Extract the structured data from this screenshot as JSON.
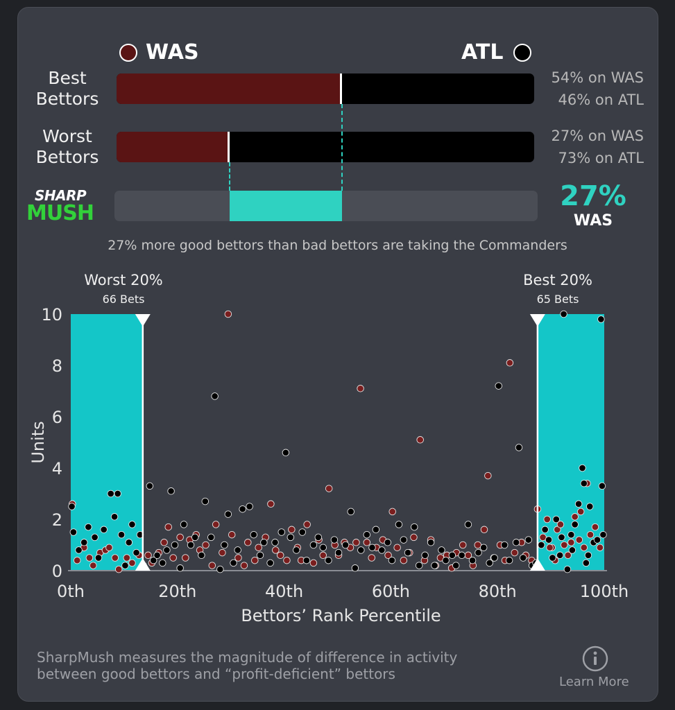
{
  "teams": {
    "left": {
      "abbr": "WAS",
      "color": "#5a1414"
    },
    "right": {
      "abbr": "ATL",
      "color": "#000000"
    }
  },
  "best_bettors": {
    "label_line1": "Best",
    "label_line2": "Bettors",
    "was_pct": 54,
    "atl_pct": 46,
    "was_text": "54% on WAS",
    "atl_text": "46% on ATL"
  },
  "worst_bettors": {
    "label_line1": "Worst",
    "label_line2": "Bettors",
    "was_pct": 27,
    "atl_pct": 73,
    "was_text": "27% on WAS",
    "atl_text": "73% on ATL"
  },
  "sharpmush": {
    "logo_top": "SHARP",
    "logo_bottom": "MUSH",
    "value_text": "27%",
    "team": "WAS",
    "from_pct": 27,
    "to_pct": 54,
    "accent": "#2fd2c1"
  },
  "summary": "27% more good bettors than bad bettors are taking the Commanders",
  "chart_data": {
    "type": "scatter",
    "xlabel": "Bettors’ Rank Percentile",
    "ylabel": "Units",
    "xlim": [
      0,
      100
    ],
    "ylim": [
      0,
      10
    ],
    "x_ticks": [
      0,
      20,
      40,
      60,
      80,
      100
    ],
    "x_tick_labels": [
      "0th",
      "20th",
      "40th",
      "60th",
      "80th",
      "100th"
    ],
    "y_ticks": [
      0,
      2,
      4,
      6,
      8,
      10
    ],
    "y_tick_labels": [
      "0",
      "2",
      "4",
      "6",
      "8",
      "10"
    ],
    "worst_zone": {
      "x_range": [
        0,
        13.5
      ],
      "title": "Worst 20%",
      "subtitle": "66 Bets"
    },
    "best_zone": {
      "x_range": [
        87.5,
        100
      ],
      "title": "Best 20%",
      "subtitle": "65 Bets"
    },
    "series": [
      {
        "name": "WAS",
        "color": "#7a1e1e",
        "points": [
          [
            0.3,
            2.6
          ],
          [
            1.2,
            0.4
          ],
          [
            2.5,
            0.9
          ],
          [
            3.5,
            0.5
          ],
          [
            4.2,
            0.2
          ],
          [
            5.5,
            0.7
          ],
          [
            6.5,
            0.8
          ],
          [
            7.2,
            0.9
          ],
          [
            8.3,
            0.5
          ],
          [
            9,
            0.05
          ],
          [
            10.5,
            0.5
          ],
          [
            11.5,
            0.3
          ],
          [
            12.8,
            0.6
          ],
          [
            14.5,
            0.6
          ],
          [
            15.2,
            0.3
          ],
          [
            16.5,
            0.7
          ],
          [
            17.5,
            1.1
          ],
          [
            18.3,
            1.7
          ],
          [
            19.2,
            0.5
          ],
          [
            20.5,
            1.3
          ],
          [
            21.5,
            0.5
          ],
          [
            22.3,
            1.2
          ],
          [
            23.5,
            1.4
          ],
          [
            24.2,
            0.8
          ],
          [
            25.3,
            1
          ],
          [
            26.5,
            0.2
          ],
          [
            27.2,
            1.8
          ],
          [
            28.4,
            0.7
          ],
          [
            29.5,
            10
          ],
          [
            30.2,
            1.4
          ],
          [
            31.4,
            0.5
          ],
          [
            32.5,
            0.2
          ],
          [
            33.2,
            1.1
          ],
          [
            34.5,
            0.4
          ],
          [
            35.2,
            0.9
          ],
          [
            36.5,
            1.3
          ],
          [
            37.5,
            2.6
          ],
          [
            38.4,
            0.8
          ],
          [
            39.3,
            0.6
          ],
          [
            40.5,
            0.4
          ],
          [
            41.4,
            1.6
          ],
          [
            42.5,
            0.9
          ],
          [
            43.2,
            0.4
          ],
          [
            44.3,
            1.8
          ],
          [
            45.5,
            0.3
          ],
          [
            46.5,
            1.2
          ],
          [
            47.3,
            0.6
          ],
          [
            48.4,
            3.2
          ],
          [
            49.5,
            1
          ],
          [
            50.2,
            0.6
          ],
          [
            51.3,
            1.1
          ],
          [
            52.4,
            0.9
          ],
          [
            53.5,
            1.1
          ],
          [
            54.3,
            7.1
          ],
          [
            55.5,
            1.1
          ],
          [
            56.4,
            0.5
          ],
          [
            57.3,
            0.9
          ],
          [
            58.5,
            1.2
          ],
          [
            59.5,
            0.6
          ],
          [
            60.3,
            2.3
          ],
          [
            61.2,
            0.9
          ],
          [
            62.4,
            0.4
          ],
          [
            63.5,
            0.7
          ],
          [
            64.3,
            1.3
          ],
          [
            65.5,
            5.1
          ],
          [
            66.3,
            0.4
          ],
          [
            67.5,
            1.2
          ],
          [
            68.4,
            0.2
          ],
          [
            69.3,
            0.5
          ],
          [
            70.5,
            0.6
          ],
          [
            71.4,
            0.1
          ],
          [
            72.3,
            0.7
          ],
          [
            73.5,
            1
          ],
          [
            74.5,
            0.6
          ],
          [
            75.4,
            0.2
          ],
          [
            76.3,
            1
          ],
          [
            77.5,
            1.6
          ],
          [
            78.2,
            3.7
          ],
          [
            79.3,
            0.5
          ],
          [
            80.5,
            1
          ],
          [
            81.4,
            0.4
          ],
          [
            82.3,
            8.1
          ],
          [
            83.2,
            0.7
          ],
          [
            84.5,
            1.1
          ],
          [
            85.3,
            0.6
          ],
          [
            86.4,
            0.4
          ],
          [
            87.5,
            2.4
          ],
          [
            88.5,
            1.3
          ],
          [
            89.3,
            2
          ],
          [
            90.2,
            0.9
          ],
          [
            91.2,
            1.6
          ],
          [
            92.5,
            1
          ],
          [
            93.2,
            0.6
          ],
          [
            94.5,
            2.1
          ],
          [
            95.3,
            1.2
          ],
          [
            96.2,
            0.9
          ],
          [
            97.4,
            1.4
          ],
          [
            98.3,
            1.7
          ],
          [
            99.2,
            0.9
          ],
          [
            96.8,
            3.4
          ],
          [
            95.6,
            2.3
          ],
          [
            93.8,
            1.1
          ],
          [
            91.8,
            1.8
          ],
          [
            90.8,
            0.4
          ],
          [
            89.8,
            0.9
          ]
        ]
      },
      {
        "name": "ATL",
        "color": "#000000",
        "points": [
          [
            0.2,
            2.5
          ],
          [
            0.5,
            1.5
          ],
          [
            1.5,
            0.8
          ],
          [
            2.5,
            1.1
          ],
          [
            3.3,
            1.7
          ],
          [
            4.5,
            1.3
          ],
          [
            5.2,
            0.5
          ],
          [
            6.2,
            1.6
          ],
          [
            7.5,
            3
          ],
          [
            8.2,
            2.1
          ],
          [
            8.8,
            3
          ],
          [
            9.5,
            1.4
          ],
          [
            10.2,
            0.2
          ],
          [
            10.9,
            1.1
          ],
          [
            11.5,
            1.8
          ],
          [
            12.3,
            0.7
          ],
          [
            13,
            1.4
          ],
          [
            13.6,
            0.2
          ],
          [
            14.8,
            3.3
          ],
          [
            15.5,
            0.4
          ],
          [
            16.2,
            0.6
          ],
          [
            17.2,
            0.3
          ],
          [
            18,
            0.8
          ],
          [
            18.8,
            3.1
          ],
          [
            19.5,
            1
          ],
          [
            20.5,
            0.1
          ],
          [
            21.2,
            1.8
          ],
          [
            22.5,
            1
          ],
          [
            23.3,
            1.3
          ],
          [
            24.5,
            0.6
          ],
          [
            25.2,
            2.7
          ],
          [
            26.3,
            1.3
          ],
          [
            27,
            6.8
          ],
          [
            28,
            0.05
          ],
          [
            28.8,
            1
          ],
          [
            29.5,
            2.2
          ],
          [
            30.5,
            0.3
          ],
          [
            31.3,
            0.8
          ],
          [
            32.2,
            2.4
          ],
          [
            33.5,
            2.5
          ],
          [
            34.3,
            1.4
          ],
          [
            35.5,
            0.6
          ],
          [
            36.2,
            1.1
          ],
          [
            37.4,
            0.3
          ],
          [
            38.3,
            1.1
          ],
          [
            39.5,
            1.5
          ],
          [
            40.3,
            4.6
          ],
          [
            41.2,
            1.3
          ],
          [
            42.3,
            0.8
          ],
          [
            43.4,
            1.5
          ],
          [
            44.2,
            0.4
          ],
          [
            45.5,
            1
          ],
          [
            46.4,
            1.3
          ],
          [
            47.3,
            0.9
          ],
          [
            48.3,
            0.4
          ],
          [
            49.4,
            1.2
          ],
          [
            50.2,
            0.7
          ],
          [
            51.5,
            1
          ],
          [
            52.5,
            2.3
          ],
          [
            53.3,
            0.1
          ],
          [
            54.4,
            0.8
          ],
          [
            55.5,
            1.4
          ],
          [
            56.5,
            0.9
          ],
          [
            57.2,
            1.6
          ],
          [
            58.3,
            0.8
          ],
          [
            59.4,
            1.1
          ],
          [
            60.2,
            0.4
          ],
          [
            61.5,
            1.8
          ],
          [
            62.4,
            1.2
          ],
          [
            63.2,
            0.7
          ],
          [
            64.4,
            1.7
          ],
          [
            65.3,
            0.2
          ],
          [
            66.4,
            0.6
          ],
          [
            67.5,
            1.1
          ],
          [
            68.2,
            0.2
          ],
          [
            69.5,
            0.8
          ],
          [
            70.3,
            0.4
          ],
          [
            71.5,
            0.6
          ],
          [
            72.2,
            0.2
          ],
          [
            73.3,
            0.6
          ],
          [
            74.5,
            1.8
          ],
          [
            75.3,
            0.4
          ],
          [
            76.4,
            0.7
          ],
          [
            77.4,
            0.9
          ],
          [
            78.5,
            0.3
          ],
          [
            79.4,
            0.5
          ],
          [
            80.2,
            7.2
          ],
          [
            81.3,
            1
          ],
          [
            82.2,
            0.4
          ],
          [
            83.5,
            1.1
          ],
          [
            84,
            4.8
          ],
          [
            84.8,
            0.5
          ],
          [
            85.8,
            1.2
          ],
          [
            86.5,
            0.2
          ],
          [
            87.2,
            0.3
          ],
          [
            88.2,
            1
          ],
          [
            88.9,
            1.6
          ],
          [
            89.6,
            1.2
          ],
          [
            90.3,
            0.5
          ],
          [
            91,
            2
          ],
          [
            91.7,
            0.6
          ],
          [
            92.4,
            10
          ],
          [
            93.1,
            0.05
          ],
          [
            93.8,
            1.4
          ],
          [
            94.5,
            1.8
          ],
          [
            95.2,
            2.6
          ],
          [
            95.9,
            4
          ],
          [
            96.2,
            3.4
          ],
          [
            96.6,
            0.3
          ],
          [
            97.3,
            2.5
          ],
          [
            98,
            1.1
          ],
          [
            98.7,
            1.2
          ],
          [
            99.4,
            9.8
          ],
          [
            99.6,
            3.3
          ],
          [
            99.8,
            1.4
          ],
          [
            97,
            0.6
          ],
          [
            94,
            0.8
          ],
          [
            92,
            1.3
          ]
        ]
      }
    ]
  },
  "footer": {
    "text_line1": "SharpMush measures the magnitude of difference in activity",
    "text_line2": "between good bettors and “profit-deficient” bettors",
    "learn_more": "Learn More",
    "info_icon": "info-icon"
  }
}
